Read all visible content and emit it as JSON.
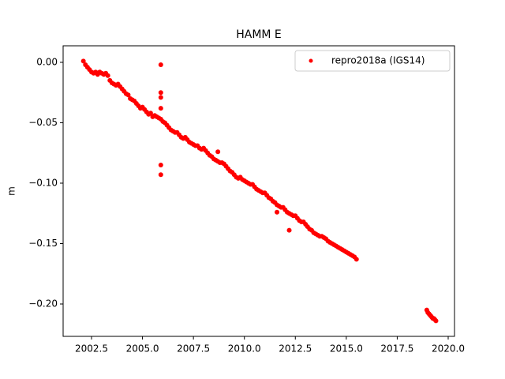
{
  "chart_data": {
    "type": "scatter",
    "title": "HAMM E",
    "y_label": "m",
    "xlim": [
      2001.106,
      2020.31
    ],
    "ylim": [
      -0.2268,
      0.0137
    ],
    "xticks": [
      {
        "value": 2002.5,
        "label": "2002.5"
      },
      {
        "value": 2005,
        "label": "2005.0"
      },
      {
        "value": 2007.5,
        "label": "2007.5"
      },
      {
        "value": 2010,
        "label": "2010.0"
      },
      {
        "value": 2012.5,
        "label": "2012.5"
      },
      {
        "value": 2015,
        "label": "2015.0"
      },
      {
        "value": 2017.5,
        "label": "2017.5"
      },
      {
        "value": 2020,
        "label": "2020.0"
      }
    ],
    "yticks": [
      {
        "value": 0,
        "label": "0.00"
      },
      {
        "value": -0.05,
        "label": "−0.05"
      },
      {
        "value": -0.1,
        "label": "−0.10"
      },
      {
        "value": -0.15,
        "label": "−0.15"
      },
      {
        "value": -0.2,
        "label": "−0.20"
      }
    ],
    "legend": "upper right",
    "x": [
      2002.1,
      2002.2,
      2002.3,
      2002.4,
      2002.5,
      2002.6,
      2002.7,
      2002.8,
      2002.9,
      2003.0,
      2003.1,
      2003.2,
      2003.3,
      2003.4,
      2003.5,
      2003.6,
      2003.7,
      2003.8,
      2003.9,
      2004.0,
      2004.1,
      2004.2,
      2004.3,
      2004.4,
      2004.5,
      2004.6,
      2004.7,
      2004.8,
      2004.9,
      2005.0,
      2005.1,
      2005.2,
      2005.3,
      2005.4,
      2005.5,
      2005.6,
      2005.7,
      2005.8,
      2005.9,
      2006.0,
      2006.1,
      2006.2,
      2006.3,
      2006.4,
      2006.5,
      2006.6,
      2006.7,
      2006.8,
      2006.9,
      2007.0,
      2007.1,
      2007.2,
      2007.3,
      2007.4,
      2007.5,
      2007.6,
      2007.7,
      2007.8,
      2007.9,
      2008.0,
      2008.1,
      2008.2,
      2008.3,
      2008.4,
      2008.5,
      2008.6,
      2008.7,
      2008.8,
      2008.9,
      2009.0,
      2009.1,
      2009.2,
      2009.3,
      2009.4,
      2009.5,
      2009.6,
      2009.7,
      2009.8,
      2009.9,
      2010.0,
      2010.1,
      2010.2,
      2010.3,
      2010.4,
      2010.5,
      2010.6,
      2010.7,
      2010.8,
      2010.9,
      2011.0,
      2011.1,
      2011.2,
      2011.3,
      2011.4,
      2011.5,
      2011.6,
      2011.7,
      2011.8,
      2011.9,
      2012.0,
      2012.1,
      2012.2,
      2012.3,
      2012.4,
      2012.5,
      2012.6,
      2012.7,
      2012.8,
      2012.9,
      2013.0,
      2013.1,
      2013.2,
      2013.3,
      2013.4,
      2013.5,
      2013.6,
      2013.7,
      2013.8,
      2013.9,
      2014.0,
      2014.1,
      2014.2,
      2014.3,
      2014.4,
      2014.5,
      2014.6,
      2014.7,
      2014.8,
      2014.9,
      2015.0,
      2015.1,
      2015.2,
      2015.3,
      2015.4,
      2015.5,
      2018.95,
      2019.0,
      2019.05,
      2019.1,
      2019.15,
      2019.2,
      2019.25,
      2019.3,
      2019.35,
      2019.4,
      2005.9,
      2005.9,
      2005.9,
      2005.9,
      2005.9,
      2005.9,
      2008.7,
      2011.6,
      2012.2
    ],
    "series": [
      {
        "name": "repro2018a (IGS14)",
        "color": "#ff0000",
        "values": [
          0.001,
          -0.002,
          -0.004,
          -0.006,
          -0.008,
          -0.009,
          -0.008,
          -0.01,
          -0.008,
          -0.009,
          -0.01,
          -0.009,
          -0.011,
          -0.015,
          -0.017,
          -0.018,
          -0.019,
          -0.018,
          -0.02,
          -0.022,
          -0.024,
          -0.026,
          -0.027,
          -0.03,
          -0.031,
          -0.032,
          -0.034,
          -0.036,
          -0.038,
          -0.037,
          -0.039,
          -0.041,
          -0.043,
          -0.042,
          -0.045,
          -0.044,
          -0.045,
          -0.046,
          -0.047,
          -0.049,
          -0.05,
          -0.052,
          -0.054,
          -0.056,
          -0.057,
          -0.058,
          -0.058,
          -0.06,
          -0.062,
          -0.063,
          -0.062,
          -0.064,
          -0.066,
          -0.067,
          -0.068,
          -0.069,
          -0.069,
          -0.071,
          -0.072,
          -0.071,
          -0.073,
          -0.075,
          -0.077,
          -0.078,
          -0.08,
          -0.081,
          -0.082,
          -0.083,
          -0.083,
          -0.084,
          -0.086,
          -0.088,
          -0.09,
          -0.091,
          -0.093,
          -0.095,
          -0.096,
          -0.095,
          -0.097,
          -0.098,
          -0.099,
          -0.1,
          -0.101,
          -0.101,
          -0.103,
          -0.105,
          -0.106,
          -0.107,
          -0.108,
          -0.108,
          -0.11,
          -0.112,
          -0.113,
          -0.115,
          -0.116,
          -0.118,
          -0.119,
          -0.12,
          -0.12,
          -0.122,
          -0.124,
          -0.125,
          -0.126,
          -0.127,
          -0.127,
          -0.129,
          -0.131,
          -0.132,
          -0.132,
          -0.134,
          -0.136,
          -0.138,
          -0.139,
          -0.141,
          -0.142,
          -0.143,
          -0.144,
          -0.144,
          -0.145,
          -0.146,
          -0.148,
          -0.149,
          -0.15,
          -0.151,
          -0.152,
          -0.153,
          -0.154,
          -0.155,
          -0.156,
          -0.157,
          -0.158,
          -0.159,
          -0.16,
          -0.161,
          -0.163,
          -0.205,
          -0.207,
          -0.208,
          -0.209,
          -0.21,
          -0.211,
          -0.212,
          -0.212,
          -0.213,
          -0.214,
          -0.002,
          -0.025,
          -0.029,
          -0.038,
          -0.085,
          -0.093,
          -0.074,
          -0.124,
          -0.139
        ]
      }
    ]
  }
}
